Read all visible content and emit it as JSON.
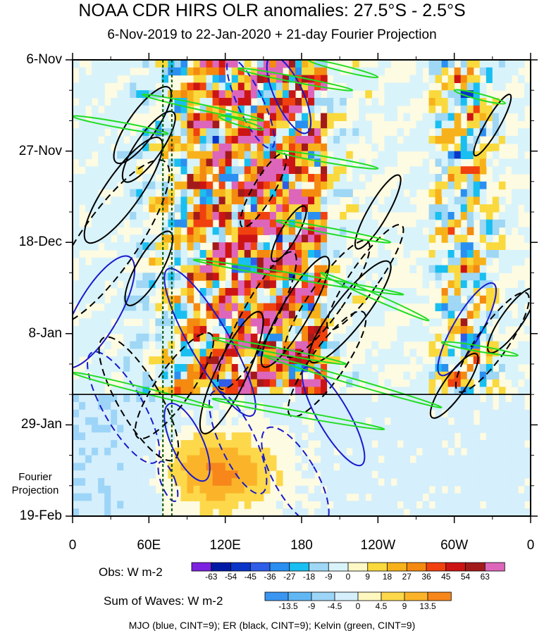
{
  "chart_data": {
    "type": "heatmap",
    "title": "NOAA CDR HIRS OLR anomalies: 27.5°S - 2.5°S",
    "subtitle": "6-Nov-2019 to 22-Jan-2020 + 21-day Fourier Projection",
    "y_axis": {
      "ticks": [
        "6-Nov",
        "27-Nov",
        "18-Dec",
        "8-Jan",
        "29-Jan",
        "19-Feb"
      ],
      "tick_days": [
        0,
        21,
        42,
        63,
        84,
        105
      ],
      "range_days": [
        0,
        105
      ],
      "projection_start_day": 77,
      "projection_label": [
        "Fourier",
        "Projection"
      ]
    },
    "x_axis": {
      "ticks": [
        "0",
        "60E",
        "120E",
        "180",
        "120W",
        "60W",
        "0"
      ],
      "tick_lon": [
        0,
        60,
        120,
        180,
        240,
        300,
        360
      ],
      "range_lon": [
        0,
        360
      ]
    },
    "reference_lines_lon": [
      71,
      78
    ],
    "obs_colorbar": {
      "label": "Obs: W m-2",
      "levels": [
        "-63",
        "-54",
        "-45",
        "-36",
        "-27",
        "-18",
        "-9",
        "0",
        "9",
        "18",
        "27",
        "36",
        "45",
        "54",
        "63"
      ],
      "colors": [
        "#7c22e0",
        "#001aa6",
        "#0a35c8",
        "#2f5de8",
        "#2a8ff0",
        "#19bff0",
        "#9fd7f5",
        "#d9f3fb",
        "#fdf8c6",
        "#f9d93d",
        "#f7b21b",
        "#f58a10",
        "#f0410f",
        "#cc1414",
        "#a31a1a",
        "#dd66bb"
      ]
    },
    "waves_colorbar": {
      "label": "Sum of Waves: W m-2",
      "levels": [
        "-13.5",
        "-9",
        "-4.5",
        "0",
        "4.5",
        "9",
        "13.5"
      ],
      "colors": [
        "#3a96f0",
        "#61b7f4",
        "#9dd5f8",
        "#d5effc",
        "#fef7c0",
        "#fdd84a",
        "#fbb42a",
        "#f7861b"
      ]
    },
    "contour_legend": "MJO (blue, CINT=9); ER (black, CINT=9); Kelvin (green, CINT=9)",
    "contour_colors": {
      "MJO": "#1a1acc",
      "ER": "#000000",
      "Kelvin": "#22dd22"
    }
  }
}
